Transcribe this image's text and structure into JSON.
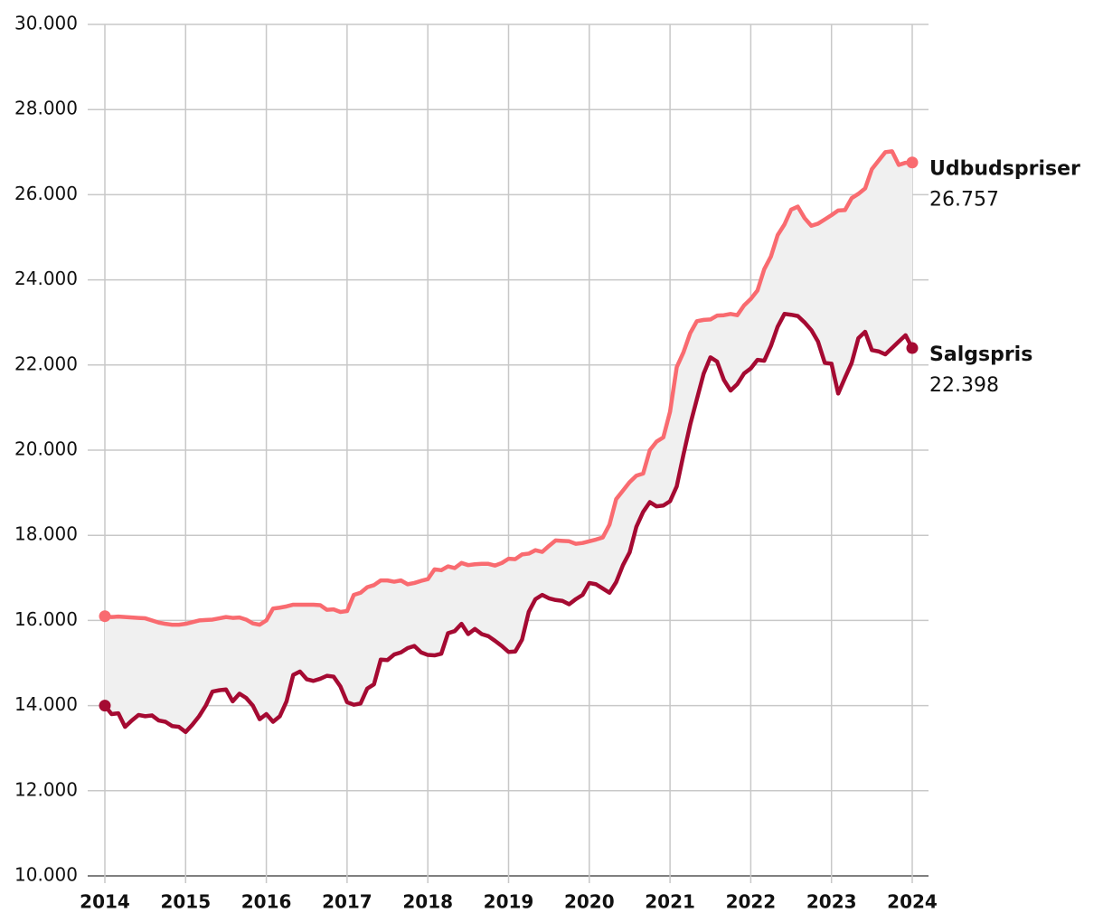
{
  "chart_data": {
    "type": "line",
    "x": [
      2014,
      2014.083,
      2014.167,
      2014.25,
      2014.333,
      2014.417,
      2014.5,
      2014.583,
      2014.667,
      2014.75,
      2014.833,
      2014.917,
      2015,
      2015.083,
      2015.167,
      2015.25,
      2015.333,
      2015.417,
      2015.5,
      2015.583,
      2015.667,
      2015.75,
      2015.833,
      2015.917,
      2016,
      2016.083,
      2016.167,
      2016.25,
      2016.333,
      2016.417,
      2016.5,
      2016.583,
      2016.667,
      2016.75,
      2016.833,
      2016.917,
      2017,
      2017.083,
      2017.167,
      2017.25,
      2017.333,
      2017.417,
      2017.5,
      2017.583,
      2017.667,
      2017.75,
      2017.833,
      2017.917,
      2018,
      2018.083,
      2018.167,
      2018.25,
      2018.333,
      2018.417,
      2018.5,
      2018.583,
      2018.667,
      2018.75,
      2018.833,
      2018.917,
      2019,
      2019.083,
      2019.167,
      2019.25,
      2019.333,
      2019.417,
      2019.5,
      2019.583,
      2019.667,
      2019.75,
      2019.833,
      2019.917,
      2020,
      2020.083,
      2020.167,
      2020.25,
      2020.333,
      2020.417,
      2020.5,
      2020.583,
      2020.667,
      2020.75,
      2020.833,
      2020.917,
      2021,
      2021.083,
      2021.167,
      2021.25,
      2021.333,
      2021.417,
      2021.5,
      2021.583,
      2021.667,
      2021.75,
      2021.833,
      2021.917,
      2022,
      2022.083,
      2022.167,
      2022.25,
      2022.333,
      2022.417,
      2022.5,
      2022.583,
      2022.667,
      2022.75,
      2022.833,
      2022.917,
      2023,
      2023.083,
      2023.167,
      2023.25,
      2023.333,
      2023.417,
      2023.5,
      2023.583,
      2023.667,
      2023.75,
      2023.833,
      2023.917,
      2024
    ],
    "series": [
      {
        "name": "Udbudspriser",
        "color": "#f96b70",
        "end_label": "26.757",
        "values": [
          16100,
          16080,
          16090,
          16080,
          16070,
          16060,
          16050,
          16000,
          15950,
          15920,
          15900,
          15900,
          15920,
          15960,
          16000,
          16010,
          16020,
          16050,
          16080,
          16060,
          16070,
          16020,
          15930,
          15900,
          16000,
          16280,
          16300,
          16330,
          16370,
          16370,
          16370,
          16370,
          16360,
          16250,
          16260,
          16200,
          16220,
          16600,
          16650,
          16780,
          16830,
          16940,
          16940,
          16910,
          16940,
          16850,
          16880,
          16930,
          16970,
          17200,
          17180,
          17270,
          17230,
          17350,
          17300,
          17320,
          17330,
          17330,
          17290,
          17350,
          17450,
          17440,
          17550,
          17570,
          17650,
          17610,
          17750,
          17880,
          17870,
          17860,
          17800,
          17820,
          17860,
          17900,
          17950,
          18250,
          18850,
          19050,
          19250,
          19400,
          19450,
          20000,
          20200,
          20300,
          20900,
          21950,
          22300,
          22750,
          23030,
          23060,
          23070,
          23160,
          23170,
          23200,
          23170,
          23400,
          23550,
          23750,
          24250,
          24550,
          25050,
          25300,
          25650,
          25720,
          25450,
          25270,
          25320,
          25420,
          25520,
          25630,
          25640,
          25920,
          26020,
          26150,
          26600,
          26800,
          27000,
          27020,
          26700,
          26750,
          26757
        ]
      },
      {
        "name": "Salgspris",
        "color": "#a50a32",
        "end_label": "22.398",
        "values": [
          14000,
          13800,
          13820,
          13500,
          13650,
          13780,
          13750,
          13770,
          13650,
          13620,
          13520,
          13500,
          13380,
          13550,
          13750,
          14000,
          14330,
          14360,
          14380,
          14100,
          14280,
          14180,
          14000,
          13680,
          13800,
          13620,
          13750,
          14100,
          14720,
          14800,
          14620,
          14580,
          14630,
          14700,
          14680,
          14450,
          14080,
          14020,
          14050,
          14400,
          14500,
          15080,
          15070,
          15200,
          15250,
          15350,
          15400,
          15250,
          15190,
          15180,
          15220,
          15700,
          15750,
          15920,
          15680,
          15800,
          15680,
          15630,
          15520,
          15400,
          15260,
          15270,
          15550,
          16200,
          16500,
          16600,
          16520,
          16480,
          16460,
          16380,
          16500,
          16600,
          16880,
          16850,
          16750,
          16650,
          16900,
          17300,
          17600,
          18200,
          18550,
          18780,
          18680,
          18700,
          18800,
          19150,
          19900,
          20600,
          21200,
          21800,
          22180,
          22080,
          21650,
          21400,
          21550,
          21800,
          21920,
          22120,
          22100,
          22450,
          22900,
          23200,
          23180,
          23150,
          23000,
          22820,
          22550,
          22050,
          22030,
          21330,
          21700,
          22050,
          22630,
          22780,
          22350,
          22320,
          22250,
          22400,
          22550,
          22700,
          22398
        ]
      }
    ],
    "xlim": [
      2014,
      2024
    ],
    "xticks": [
      2014,
      2015,
      2016,
      2017,
      2018,
      2019,
      2020,
      2021,
      2022,
      2023,
      2024
    ],
    "ylim": [
      10000,
      30000
    ],
    "yticks": [
      {
        "value": 10000,
        "label": "10.000"
      },
      {
        "value": 12000,
        "label": "12.000"
      },
      {
        "value": 14000,
        "label": "14.000"
      },
      {
        "value": 16000,
        "label": "16.000"
      },
      {
        "value": 18000,
        "label": "18.000"
      },
      {
        "value": 20000,
        "label": "20.000"
      },
      {
        "value": 22000,
        "label": "22.000"
      },
      {
        "value": 24000,
        "label": "24.000"
      },
      {
        "value": 26000,
        "label": "26.000"
      },
      {
        "value": 28000,
        "label": "28.000"
      },
      {
        "value": 30000,
        "label": "30.000"
      }
    ],
    "grid": true,
    "band_fill": "#f0f0f0"
  }
}
